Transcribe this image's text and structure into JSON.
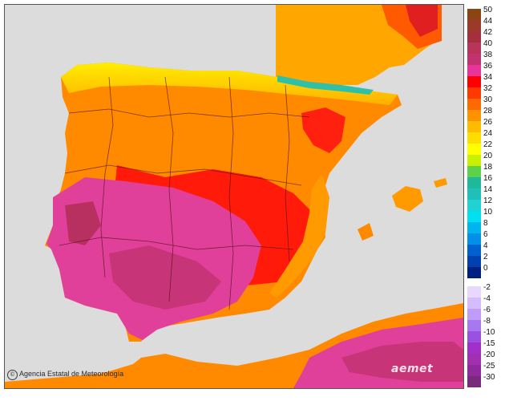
{
  "map": {
    "credit": "Agencia Estatal de Meteorología",
    "brand": "aemet",
    "credit_icon": "copyright-circle-icon"
  },
  "legend": [
    {
      "label": "50",
      "color": "#8b4513"
    },
    {
      "label": "44",
      "color": "#9c3a2a"
    },
    {
      "label": "42",
      "color": "#a5303d"
    },
    {
      "label": "40",
      "color": "#b8345a"
    },
    {
      "label": "38",
      "color": "#c2336e"
    },
    {
      "label": "36",
      "color": "#e83398"
    },
    {
      "label": "34",
      "color": "#ff0000"
    },
    {
      "label": "32",
      "color": "#ff3a00"
    },
    {
      "label": "30",
      "color": "#ff6a00"
    },
    {
      "label": "28",
      "color": "#ff9200"
    },
    {
      "label": "26",
      "color": "#ffbb00"
    },
    {
      "label": "24",
      "color": "#ffdd00"
    },
    {
      "label": "22",
      "color": "#ffff00"
    },
    {
      "label": "20",
      "color": "#c8f000"
    },
    {
      "label": "18",
      "color": "#5ad24a"
    },
    {
      "label": "16",
      "color": "#20b89a"
    },
    {
      "label": "14",
      "color": "#20c0b8"
    },
    {
      "label": "12",
      "color": "#20d2d2"
    },
    {
      "label": "10",
      "color": "#00e0f0"
    },
    {
      "label": "8",
      "color": "#00b4f0"
    },
    {
      "label": "6",
      "color": "#0090e8"
    },
    {
      "label": "4",
      "color": "#0060d0"
    },
    {
      "label": "2",
      "color": "#0040b0"
    },
    {
      "label": "0",
      "color": "#002080"
    },
    {
      "label": "-2",
      "color": "#e6d8ff"
    },
    {
      "label": "-4",
      "color": "#d4bcff"
    },
    {
      "label": "-6",
      "color": "#c09cf8"
    },
    {
      "label": "-8",
      "color": "#a878ee"
    },
    {
      "label": "-10",
      "color": "#9a50e0"
    },
    {
      "label": "-15",
      "color": "#a030c8"
    },
    {
      "label": "-20",
      "color": "#a030b0"
    },
    {
      "label": "-25",
      "color": "#902a9a"
    },
    {
      "label": "-30",
      "color": "#7a2a7a"
    }
  ]
}
